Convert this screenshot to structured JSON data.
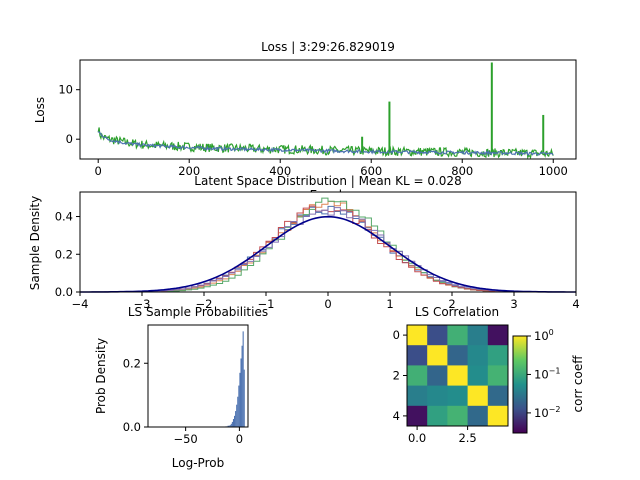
{
  "figure": {
    "background": "#ffffff",
    "axis_color": "#000000"
  },
  "chart_data": [
    {
      "id": "loss",
      "type": "line",
      "title": "Loss | 3:29:26.829019",
      "xlabel": "Epoch",
      "ylabel": "Loss",
      "xlim": [
        -40,
        1050
      ],
      "ylim": [
        -4,
        16
      ],
      "xticks": [
        0,
        200,
        400,
        600,
        800,
        1000
      ],
      "yticks": [
        0,
        10
      ],
      "grid": false,
      "series": [
        {
          "color": "#2ca02c",
          "points": [
            [
              0,
              2.3
            ],
            [
              2,
              1.6
            ],
            [
              5,
              0.8
            ],
            [
              10,
              0.4
            ],
            [
              20,
              0.1
            ],
            [
              40,
              -0.3
            ],
            [
              60,
              -0.6
            ],
            [
              80,
              -0.9
            ],
            [
              100,
              -1.1
            ],
            [
              130,
              -1.3
            ],
            [
              160,
              -1.4
            ],
            [
              200,
              -1.55
            ],
            [
              240,
              -1.7
            ],
            [
              280,
              -1.8
            ],
            [
              320,
              -1.9
            ],
            [
              360,
              -2.0
            ],
            [
              400,
              -2.05
            ],
            [
              440,
              -2.1
            ],
            [
              480,
              -2.2
            ],
            [
              520,
              -2.3
            ],
            [
              560,
              -2.35
            ],
            [
              600,
              -2.4
            ],
            [
              640,
              -2.45
            ],
            [
              680,
              -2.5
            ],
            [
              720,
              -2.55
            ],
            [
              760,
              -2.6
            ],
            [
              800,
              -2.65
            ],
            [
              840,
              -2.7
            ],
            [
              880,
              -2.75
            ],
            [
              920,
              -2.8
            ],
            [
              960,
              -2.85
            ],
            [
              1000,
              -3.0
            ]
          ],
          "noise": 0.9
        },
        {
          "color": "#4c72b0",
          "points": [
            [
              0,
              1.5
            ],
            [
              20,
              0.0
            ],
            [
              60,
              -0.8
            ],
            [
              100,
              -1.2
            ],
            [
              200,
              -1.7
            ],
            [
              300,
              -2.0
            ],
            [
              400,
              -2.15
            ],
            [
              500,
              -2.35
            ],
            [
              600,
              -2.5
            ],
            [
              700,
              -2.6
            ],
            [
              800,
              -2.7
            ],
            [
              900,
              -2.8
            ],
            [
              1000,
              -3.0
            ]
          ],
          "noise": 0.3
        }
      ],
      "spikes": [
        {
          "x": 580,
          "y": 0.5
        },
        {
          "x": 640,
          "y": 7.6
        },
        {
          "x": 865,
          "y": 15.5
        },
        {
          "x": 978,
          "y": 4.9
        }
      ]
    },
    {
      "id": "latent",
      "type": "histogram",
      "title": "Latent Space Distribution | Mean KL = 0.028",
      "xlabel": "",
      "ylabel": "Sample Density",
      "xlim": [
        -4,
        4
      ],
      "ylim": [
        0,
        0.53
      ],
      "xticks": [
        -4,
        -3,
        -2,
        -1,
        0,
        1,
        2,
        3,
        4
      ],
      "yticks": [
        0.0,
        0.2,
        0.4
      ],
      "grid": false,
      "reference_curve": {
        "distribution": "standard normal",
        "mean": 0,
        "std": 1,
        "color": "#00008b"
      },
      "histograms": [
        {
          "color": "#4c72b0",
          "std": 0.91,
          "mean": -0.02
        },
        {
          "color": "#dd8452",
          "std": 0.86,
          "mean": 0.01
        },
        {
          "color": "#55a868",
          "std": 0.84,
          "mean": 0.07
        },
        {
          "color": "#c44e52",
          "std": 0.89,
          "mean": -0.04
        },
        {
          "color": "#8172b2",
          "std": 0.93,
          "mean": 0.03
        }
      ],
      "bin_width": 0.1
    },
    {
      "id": "probs",
      "type": "histogram",
      "title": "LS Sample Probabilities",
      "xlabel": "Log-Prob",
      "ylabel": "Prob Density",
      "xlim": [
        -85,
        8
      ],
      "ylim": [
        0,
        0.32
      ],
      "xticks": [
        -50,
        0
      ],
      "yticks": [
        0.0,
        0.2
      ],
      "grid": false,
      "color": "#4c72b0",
      "bins": [
        {
          "x0": -13,
          "x1": -11,
          "d": 0.002
        },
        {
          "x0": -11,
          "x1": -9,
          "d": 0.004
        },
        {
          "x0": -9,
          "x1": -8,
          "d": 0.006
        },
        {
          "x0": -8,
          "x1": -7,
          "d": 0.01
        },
        {
          "x0": -7,
          "x1": -6,
          "d": 0.016
        },
        {
          "x0": -6,
          "x1": -5,
          "d": 0.025
        },
        {
          "x0": -5,
          "x1": -4,
          "d": 0.035
        },
        {
          "x0": -4,
          "x1": -3,
          "d": 0.05
        },
        {
          "x0": -3,
          "x1": -2,
          "d": 0.07
        },
        {
          "x0": -2,
          "x1": -1,
          "d": 0.095
        },
        {
          "x0": -1,
          "x1": 0,
          "d": 0.13
        },
        {
          "x0": 0,
          "x1": 1,
          "d": 0.17
        },
        {
          "x0": 1,
          "x1": 2,
          "d": 0.215
        },
        {
          "x0": 2,
          "x1": 3,
          "d": 0.255
        },
        {
          "x0": 3,
          "x1": 4,
          "d": 0.3
        },
        {
          "x0": 4,
          "x1": 5,
          "d": 0.18
        }
      ]
    },
    {
      "id": "corr",
      "type": "heatmap",
      "title": "LS Correlation",
      "xlabel": "",
      "ylabel": "",
      "xticks": [
        0.0,
        2.5
      ],
      "yticks": [
        0,
        2,
        4
      ],
      "colormap": "viridis",
      "scale": "log",
      "colorbar": {
        "label": "corr coeff",
        "min": 0.003,
        "max": 1.0,
        "ticks": [
          {
            "value": 1.0,
            "label": "10",
            "exp": "0"
          },
          {
            "value": 0.1,
            "label": "10",
            "exp": "−1"
          },
          {
            "value": 0.01,
            "label": "10",
            "exp": "−2"
          }
        ]
      },
      "matrix": [
        [
          1.0,
          0.012,
          0.12,
          0.035,
          0.004
        ],
        [
          0.012,
          1.0,
          0.02,
          0.045,
          0.08
        ],
        [
          0.12,
          0.02,
          1.0,
          0.05,
          0.13
        ],
        [
          0.035,
          0.045,
          0.05,
          1.0,
          0.022
        ],
        [
          0.004,
          0.08,
          0.13,
          0.022,
          1.0
        ]
      ]
    }
  ]
}
